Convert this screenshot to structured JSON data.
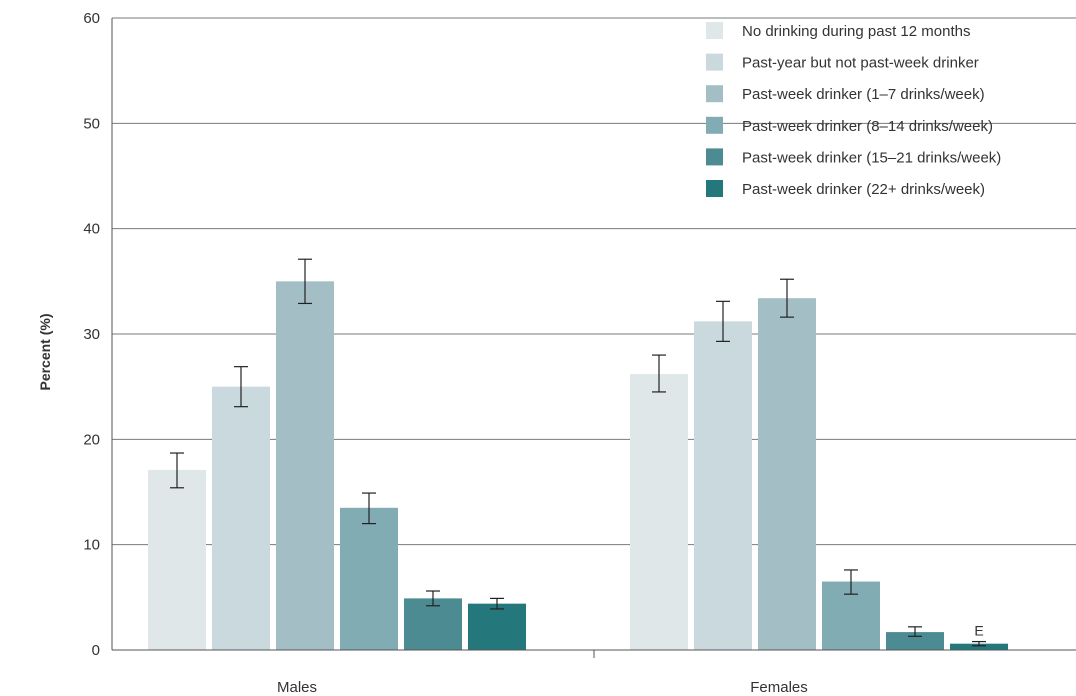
{
  "chart_data": {
    "type": "bar",
    "title": "",
    "xlabel": "",
    "ylabel": "Percent (%)",
    "ylim": [
      0,
      60
    ],
    "yticks": [
      0,
      10,
      20,
      30,
      40,
      50,
      60
    ],
    "grid": true,
    "legend_position": "top-right",
    "categories": [
      "Males",
      "Females"
    ],
    "series": [
      {
        "name": "No drinking during past 12 months",
        "color": "#dfe7e8",
        "values": [
          17.1,
          26.2
        ],
        "error_low": [
          15.4,
          24.5
        ],
        "error_high": [
          18.7,
          28.0
        ]
      },
      {
        "name": "Past-year but not past-week drinker",
        "color": "#c9d9de",
        "values": [
          25.0,
          31.2
        ],
        "error_low": [
          23.1,
          29.3
        ],
        "error_high": [
          26.9,
          33.1
        ]
      },
      {
        "name": "Past-week drinker (1–7 drinks/week)",
        "color": "#a3bfc5",
        "values": [
          35.0,
          33.4
        ],
        "error_low": [
          32.9,
          31.6
        ],
        "error_high": [
          37.1,
          35.2
        ]
      },
      {
        "name": "Past-week drinker (8–14 drinks/week)",
        "color": "#81acb3",
        "values": [
          13.5,
          6.5
        ],
        "error_low": [
          12.0,
          5.3
        ],
        "error_high": [
          14.9,
          7.6
        ]
      },
      {
        "name": "Past-week drinker (15–21 drinks/week)",
        "color": "#4c8b91",
        "values": [
          4.9,
          1.7
        ],
        "error_low": [
          4.2,
          1.3
        ],
        "error_high": [
          5.6,
          2.2
        ]
      },
      {
        "name": "Past-week drinker (22+ drinks/week)",
        "color": "#24787c",
        "values": [
          4.4,
          0.6
        ],
        "error_low": [
          3.9,
          0.4
        ],
        "error_high": [
          4.9,
          0.8
        ]
      }
    ],
    "annotations": [
      {
        "series": 5,
        "category": 1,
        "text": "E"
      }
    ]
  }
}
